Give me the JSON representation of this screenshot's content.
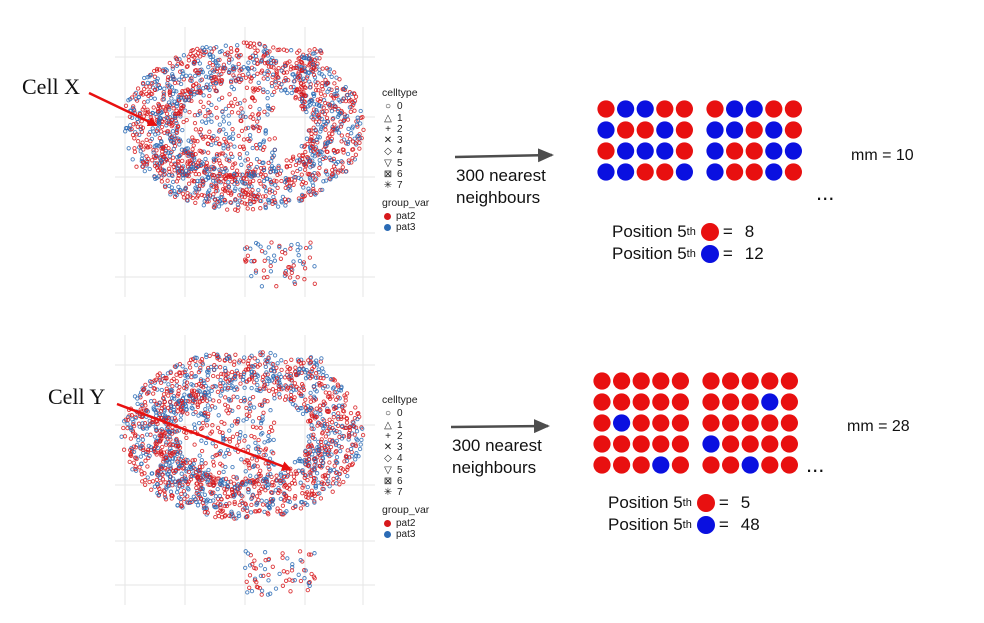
{
  "colors": {
    "red": "#e81010",
    "blue": "#0a10e0",
    "pat2": "#d7191c",
    "pat3": "#2b6bb5"
  },
  "legend": {
    "celltype_title": "celltype",
    "celltypes": [
      "0",
      "1",
      "2",
      "3",
      "4",
      "5",
      "6",
      "7"
    ],
    "group_title": "group_var",
    "groups": [
      "pat2",
      "pat3"
    ]
  },
  "arrow_label": [
    "300 nearest",
    "neighbours"
  ],
  "panels": [
    {
      "cell_label": "Cell X",
      "mm": "mm = 10",
      "position_label": "Position 5",
      "position_suffix": "th",
      "equals": "=",
      "pos_red": "8",
      "pos_blue": "12",
      "ellipsis": "...",
      "grid_left": [
        [
          "r",
          "b",
          "b",
          "r",
          "r"
        ],
        [
          "b",
          "r",
          "r",
          "b",
          "r"
        ],
        [
          "r",
          "b",
          "b",
          "b",
          "r"
        ],
        [
          "b",
          "b",
          "r",
          "r",
          "b"
        ]
      ],
      "grid_right": [
        [
          "r",
          "b",
          "b",
          "r",
          "r"
        ],
        [
          "b",
          "b",
          "r",
          "b",
          "r"
        ],
        [
          "b",
          "r",
          "r",
          "b",
          "b"
        ],
        [
          "b",
          "r",
          "r",
          "b",
          "r"
        ]
      ]
    },
    {
      "cell_label": "Cell Y",
      "mm": "mm = 28",
      "position_label": "Position 5",
      "position_suffix": "th",
      "equals": "=",
      "pos_red": "5",
      "pos_blue": "48",
      "ellipsis": "...",
      "grid_left": [
        [
          "r",
          "r",
          "r",
          "r",
          "r"
        ],
        [
          "r",
          "r",
          "r",
          "r",
          "r"
        ],
        [
          "r",
          "b",
          "r",
          "r",
          "r"
        ],
        [
          "r",
          "r",
          "r",
          "r",
          "r"
        ],
        [
          "r",
          "r",
          "r",
          "b",
          "r"
        ]
      ],
      "grid_right": [
        [
          "r",
          "r",
          "r",
          "r",
          "r"
        ],
        [
          "r",
          "r",
          "r",
          "b",
          "r"
        ],
        [
          "r",
          "r",
          "r",
          "r",
          "r"
        ],
        [
          "b",
          "r",
          "r",
          "r",
          "r"
        ],
        [
          "r",
          "r",
          "b",
          "r",
          "r"
        ]
      ]
    }
  ]
}
